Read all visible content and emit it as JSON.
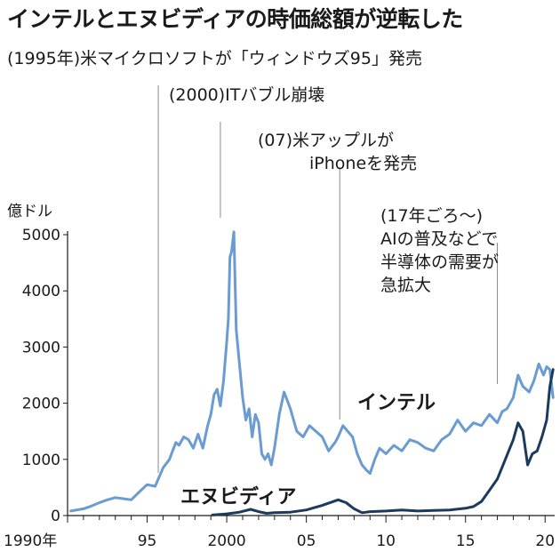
{
  "title": "インテルとエヌビディアの時価総額が逆転した",
  "chart_data": {
    "type": "line",
    "title": "インテルとエヌビディアの時価総額が逆転した",
    "ylabel": "億ドル",
    "ylim": [
      0,
      5000
    ],
    "xlim": [
      1990,
      2020.6
    ],
    "y_ticks": [
      "0",
      "1000",
      "2000",
      "3000",
      "4000",
      "5000"
    ],
    "x_ticks": [
      {
        "x": 1990,
        "label": "1990年"
      },
      {
        "x": 1995,
        "label": "95"
      },
      {
        "x": 2000,
        "label": "2000"
      },
      {
        "x": 2005,
        "label": "05"
      },
      {
        "x": 2010,
        "label": "10"
      },
      {
        "x": 2015,
        "label": "15"
      },
      {
        "x": 2020,
        "label": "20"
      }
    ],
    "grid": false,
    "series": [
      {
        "name": "インテル",
        "color": "#6a9bd1",
        "x": [
          1990.2,
          1991,
          1991.5,
          1992,
          1992.5,
          1993,
          1993.5,
          1994,
          1994.5,
          1995,
          1995.5,
          1996,
          1996.4,
          1996.8,
          1997,
          1997.3,
          1997.6,
          1997.9,
          1998.2,
          1998.5,
          1998.8,
          1999,
          1999.2,
          1999.4,
          1999.6,
          1999.8,
          2000,
          2000.1,
          2000.2,
          2000.3,
          2000.45,
          2000.6,
          2000.8,
          2001,
          2001.2,
          2001.4,
          2001.6,
          2001.8,
          2002,
          2002.2,
          2002.4,
          2002.6,
          2002.8,
          2003,
          2003.3,
          2003.6,
          2004,
          2004.4,
          2004.8,
          2005.2,
          2005.6,
          2006,
          2006.4,
          2006.8,
          2007,
          2007.3,
          2007.6,
          2007.9,
          2008.2,
          2008.5,
          2008.8,
          2009,
          2009.3,
          2009.6,
          2010,
          2010.5,
          2011,
          2011.5,
          2012,
          2012.5,
          2013,
          2013.5,
          2014,
          2014.5,
          2015,
          2015.5,
          2016,
          2016.5,
          2017,
          2017.3,
          2017.6,
          2018,
          2018.3,
          2018.6,
          2019,
          2019.3,
          2019.6,
          2019.9,
          2020.1,
          2020.3,
          2020.5
        ],
        "values": [
          80,
          120,
          170,
          230,
          280,
          320,
          300,
          280,
          420,
          550,
          520,
          850,
          1000,
          1300,
          1250,
          1400,
          1350,
          1200,
          1450,
          1200,
          1600,
          1800,
          2150,
          2250,
          1950,
          2400,
          3100,
          3500,
          4600,
          4700,
          5050,
          3300,
          2700,
          2100,
          1700,
          1900,
          1400,
          1800,
          1650,
          1100,
          1000,
          1100,
          900,
          1200,
          1800,
          2200,
          1900,
          1500,
          1400,
          1600,
          1500,
          1400,
          1150,
          1300,
          1400,
          1600,
          1500,
          1400,
          1100,
          900,
          800,
          750,
          1000,
          1200,
          1100,
          1250,
          1150,
          1350,
          1300,
          1200,
          1150,
          1350,
          1450,
          1700,
          1500,
          1650,
          1600,
          1800,
          1650,
          1850,
          1900,
          2100,
          2500,
          2300,
          2200,
          2400,
          2700,
          2500,
          2650,
          2600,
          2100
        ]
      },
      {
        "name": "エヌビディア",
        "color": "#1b3a5c",
        "x": [
          1999.1,
          2000,
          2000.8,
          2001.5,
          2002,
          2002.5,
          2003,
          2004,
          2005,
          2006,
          2007,
          2007.5,
          2008,
          2008.5,
          2009,
          2010,
          2011,
          2012,
          2013,
          2014,
          2015,
          2015.5,
          2016,
          2016.5,
          2017,
          2017.5,
          2018,
          2018.3,
          2018.6,
          2018.9,
          2019.2,
          2019.5,
          2019.8,
          2020.1,
          2020.3,
          2020.5
        ],
        "values": [
          10,
          30,
          60,
          110,
          70,
          40,
          50,
          60,
          100,
          180,
          280,
          230,
          120,
          50,
          70,
          80,
          100,
          80,
          90,
          100,
          130,
          160,
          250,
          450,
          650,
          1000,
          1350,
          1650,
          1500,
          900,
          1100,
          1150,
          1400,
          1700,
          2300,
          2600
        ]
      }
    ],
    "annotations": [
      {
        "x": 1995.7,
        "lines": [
          "(1995年)米マイクロソフトが「ウィンドウズ95」発売"
        ]
      },
      {
        "x": 1999.6,
        "lines": [
          "(2000)ITバブル崩壊"
        ]
      },
      {
        "x": 2007.1,
        "lines": [
          "(07)米アップルが",
          "iPhoneを発売"
        ]
      },
      {
        "x": 2017.0,
        "lines": [
          "(17年ごろ〜)",
          "AIの普及などで",
          "半導体の需要が",
          "急拡大"
        ]
      }
    ]
  }
}
